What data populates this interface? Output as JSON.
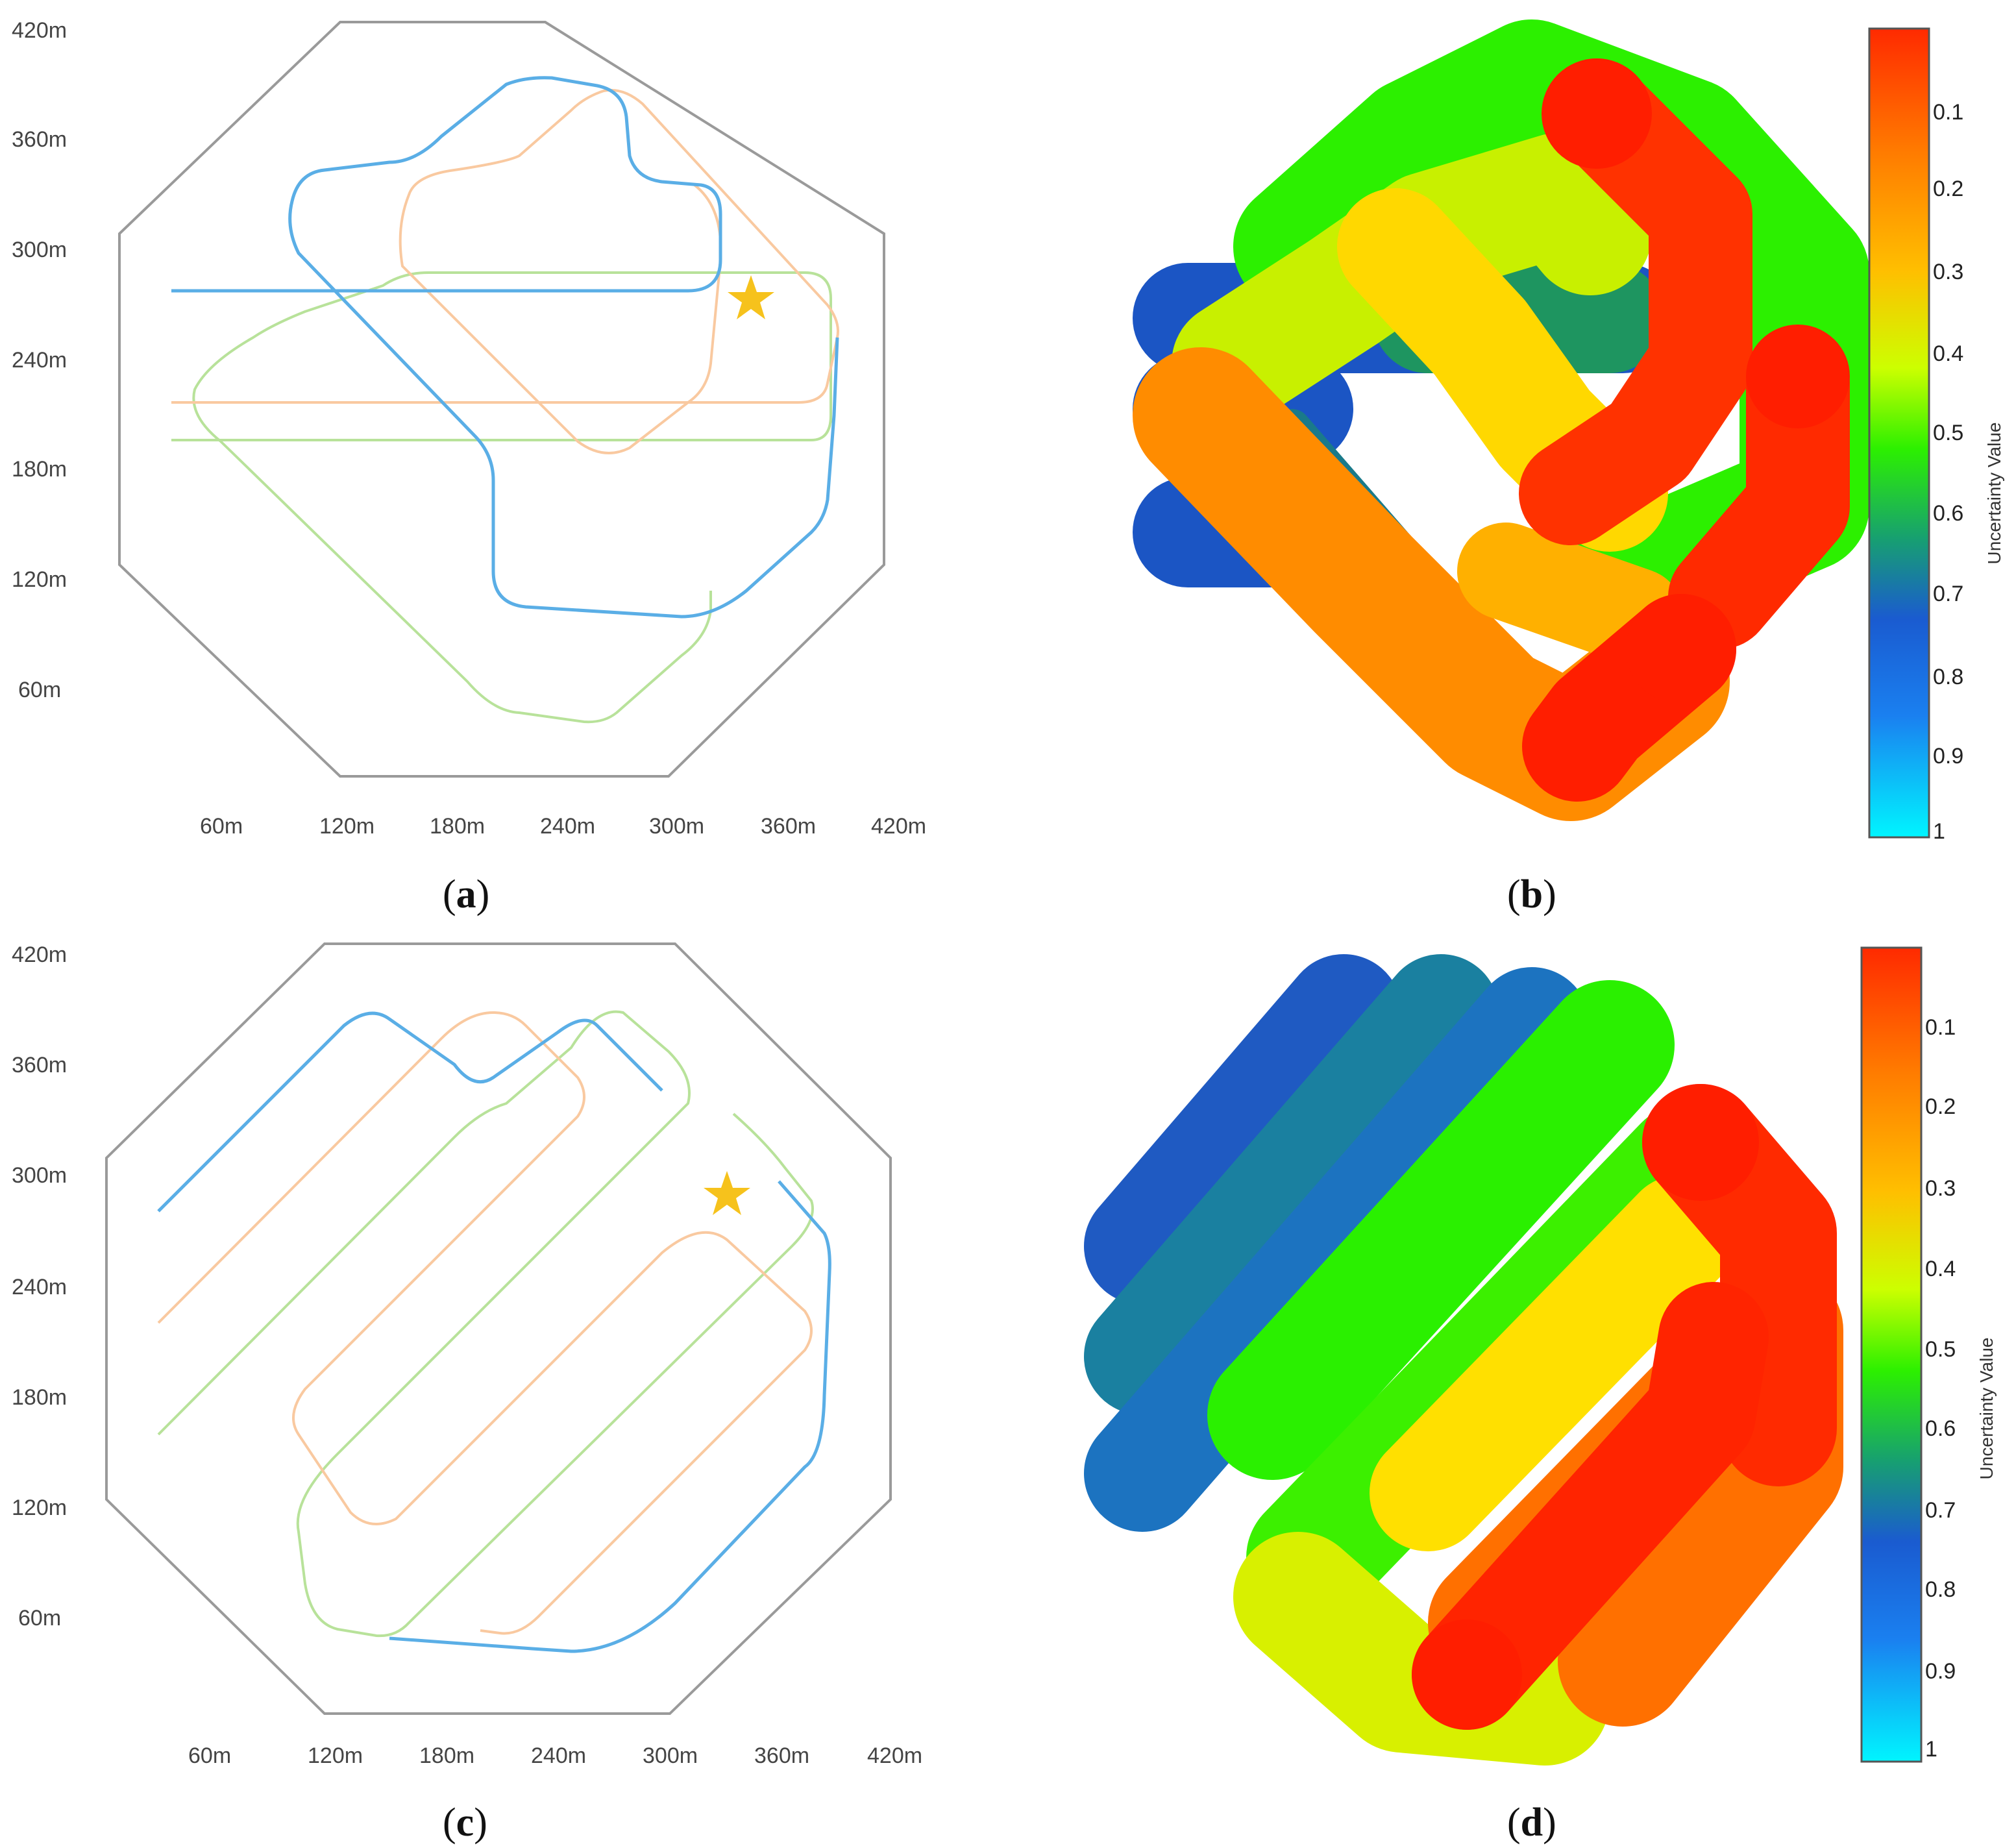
{
  "figure": {
    "panels": [
      {
        "id": "a",
        "caption": "(a)",
        "caption_bold": "a",
        "type": "flight-paths",
        "y_ticks": [
          "420m",
          "360m",
          "300m",
          "240m",
          "180m",
          "120m",
          "60m"
        ],
        "x_ticks": [
          "60m",
          "120m",
          "180m",
          "240m",
          "300m",
          "360m",
          "420m"
        ],
        "path_colors": {
          "uav1": "#5aaee6",
          "uav2": "#f9c9a0",
          "uav3": "#b8e29a"
        },
        "star_color": "#f6c21c"
      },
      {
        "id": "b",
        "caption": "(b)",
        "caption_bold": "b",
        "type": "uncertainty-map",
        "colorbar": {
          "label": "Uncertainty Value",
          "ticks": [
            "0.1",
            "0.2",
            "0.3",
            "0.4",
            "0.5",
            "0.6",
            "0.7",
            "0.8",
            "0.9",
            "1"
          ],
          "colors": [
            "#ff2a00",
            "#ff7a00",
            "#ffbf00",
            "#ccff00",
            "#2cf000",
            "#17a070",
            "#1a5bd0",
            "#1a80f0",
            "#20c8f5",
            "#00f5ff"
          ]
        }
      },
      {
        "id": "c",
        "caption": "(c)",
        "caption_bold": "c",
        "type": "flight-paths",
        "y_ticks": [
          "420m",
          "360m",
          "300m",
          "240m",
          "180m",
          "120m",
          "60m"
        ],
        "x_ticks": [
          "60m",
          "120m",
          "180m",
          "240m",
          "300m",
          "360m",
          "420m"
        ],
        "path_colors": {
          "uav1": "#5aaee6",
          "uav2": "#f9c9a0",
          "uav3": "#b8e29a"
        },
        "star_color": "#f6c21c"
      },
      {
        "id": "d",
        "caption": "(d)",
        "caption_bold": "d",
        "type": "uncertainty-map",
        "colorbar": {
          "label": "Uncertainty Value",
          "ticks": [
            "0.1",
            "0.2",
            "0.3",
            "0.4",
            "0.5",
            "0.6",
            "0.7",
            "0.8",
            "0.9",
            "1"
          ],
          "colors": [
            "#ff2a00",
            "#ff7a00",
            "#ffbf00",
            "#ccff00",
            "#2cf000",
            "#17a070",
            "#1a5bd0",
            "#1a80f0",
            "#20c8f5",
            "#00f5ff"
          ]
        }
      }
    ]
  }
}
